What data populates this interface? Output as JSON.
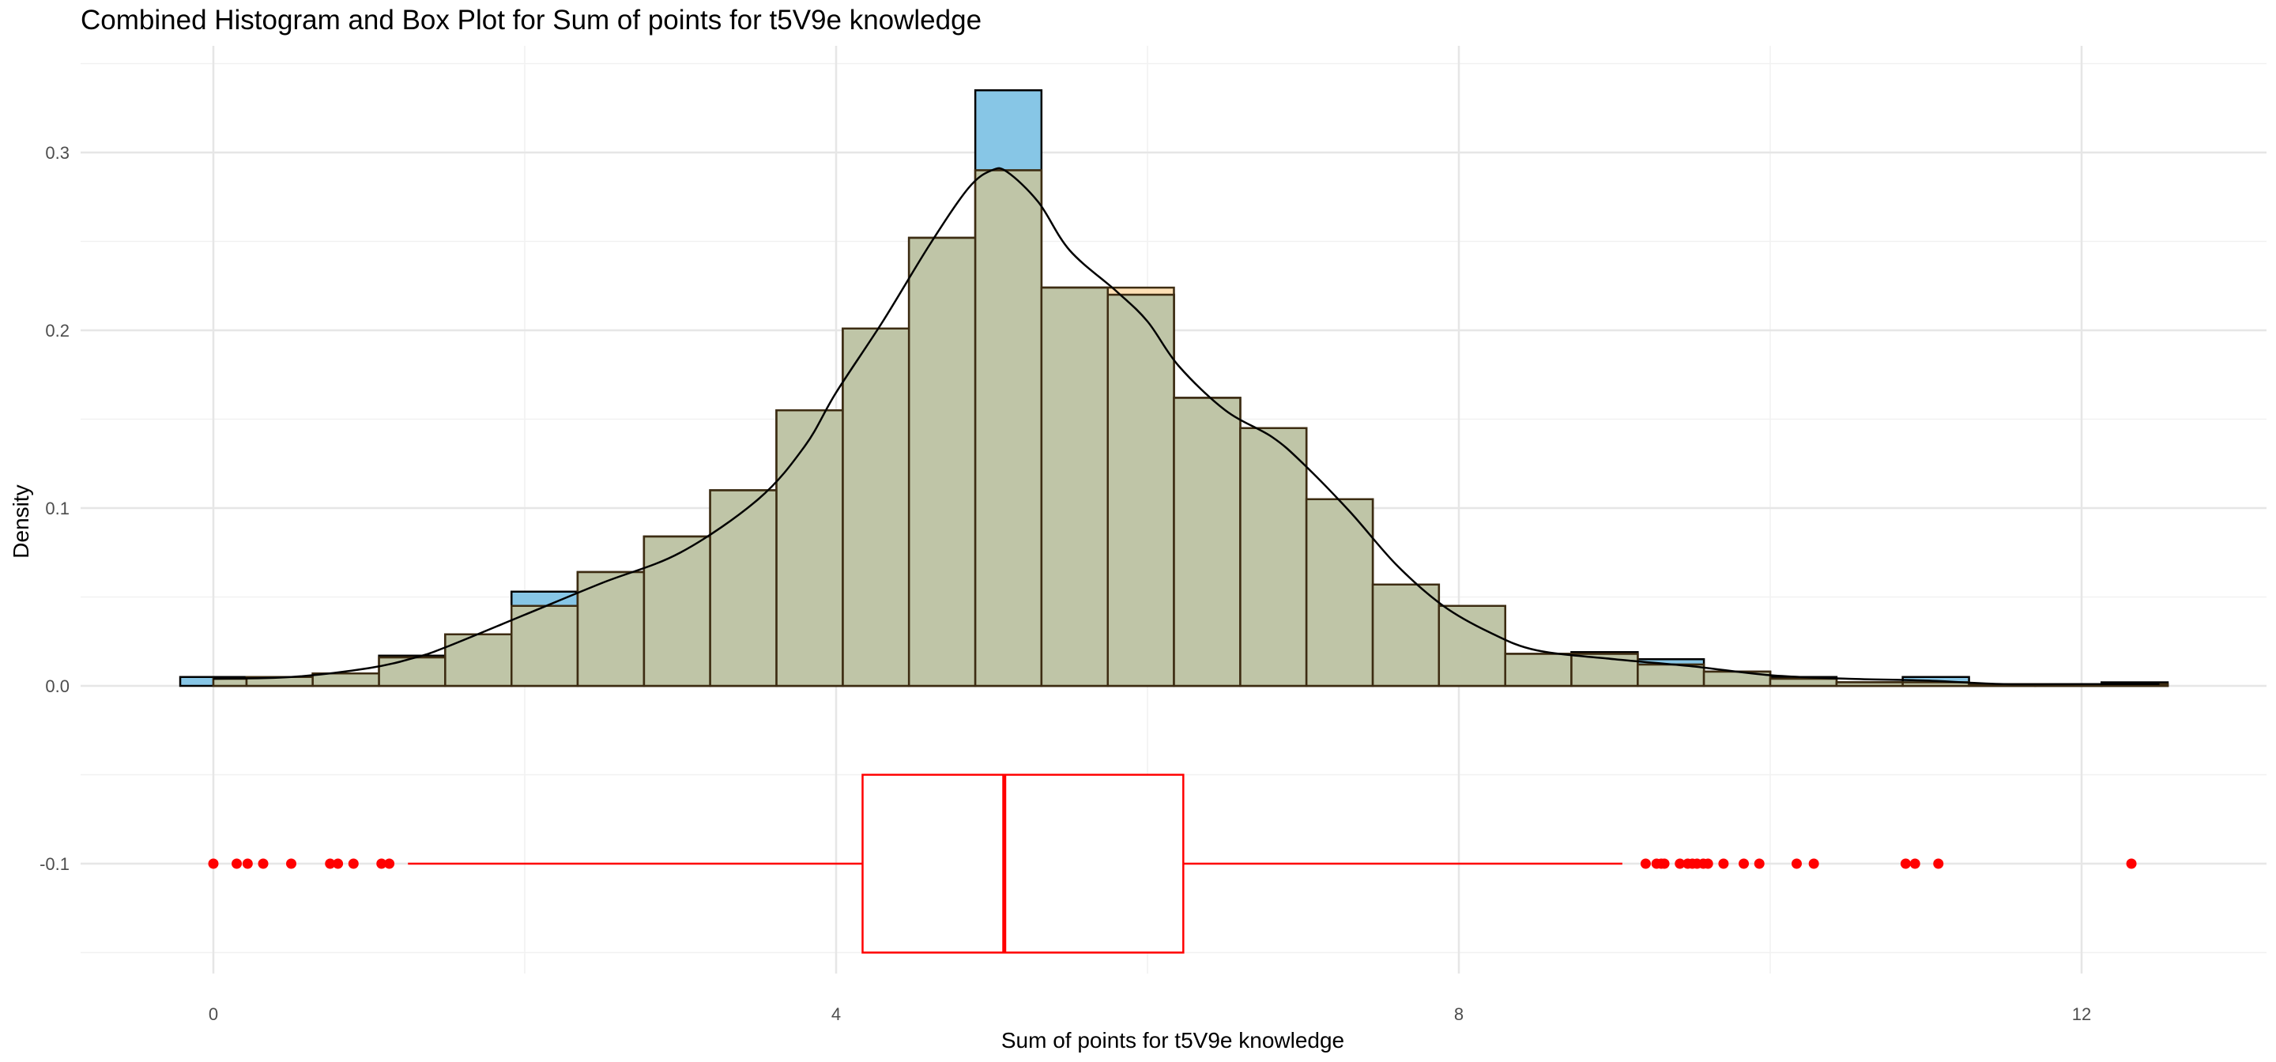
{
  "chart_data": {
    "title": "Combined Histogram and Box Plot for Sum of points for t5V9e knowledge",
    "xlabel": "Sum of points for t5V9e knowledge",
    "ylabel": "Density",
    "xlim": [
      -1.0,
      13.5
    ],
    "ylim": [
      -0.17,
      0.35
    ],
    "x_ticks": [
      0,
      4,
      8,
      12
    ],
    "y_ticks": [
      -0.1,
      0.0,
      0.1,
      0.2,
      0.3
    ],
    "y_tick_labels": [
      "-0.1",
      "0.0",
      "0.1",
      "0.2",
      "0.3"
    ],
    "grid": true,
    "legend": "none",
    "layers": [
      {
        "type": "histogram",
        "role": "observed",
        "fill": "#87C6E6",
        "bin_width": 0.4255,
        "bins": [
          {
            "x0": -0.213,
            "x1": 0.213,
            "density": 0.005
          },
          {
            "x0": 0.213,
            "x1": 0.638,
            "density": 0.005
          },
          {
            "x0": 0.638,
            "x1": 1.064,
            "density": 0.007
          },
          {
            "x0": 1.064,
            "x1": 1.489,
            "density": 0.017
          },
          {
            "x0": 1.489,
            "x1": 1.915,
            "density": 0.029
          },
          {
            "x0": 1.915,
            "x1": 2.34,
            "density": 0.053
          },
          {
            "x0": 2.34,
            "x1": 2.766,
            "density": 0.064
          },
          {
            "x0": 2.766,
            "x1": 3.191,
            "density": 0.084
          },
          {
            "x0": 3.191,
            "x1": 3.617,
            "density": 0.11
          },
          {
            "x0": 3.617,
            "x1": 4.043,
            "density": 0.155
          },
          {
            "x0": 4.043,
            "x1": 4.468,
            "density": 0.201
          },
          {
            "x0": 4.468,
            "x1": 4.894,
            "density": 0.252
          },
          {
            "x0": 4.894,
            "x1": 5.319,
            "density": 0.335
          },
          {
            "x0": 5.319,
            "x1": 5.745,
            "density": 0.224
          },
          {
            "x0": 5.745,
            "x1": 6.17,
            "density": 0.22
          },
          {
            "x0": 6.17,
            "x1": 6.596,
            "density": 0.162
          },
          {
            "x0": 6.596,
            "x1": 7.021,
            "density": 0.145
          },
          {
            "x0": 7.021,
            "x1": 7.447,
            "density": 0.105
          },
          {
            "x0": 7.447,
            "x1": 7.872,
            "density": 0.057
          },
          {
            "x0": 7.872,
            "x1": 8.298,
            "density": 0.045
          },
          {
            "x0": 8.298,
            "x1": 8.723,
            "density": 0.018
          },
          {
            "x0": 8.723,
            "x1": 9.149,
            "density": 0.019
          },
          {
            "x0": 9.149,
            "x1": 9.574,
            "density": 0.015
          },
          {
            "x0": 9.574,
            "x1": 10.0,
            "density": 0.008
          },
          {
            "x0": 10.0,
            "x1": 10.426,
            "density": 0.005
          },
          {
            "x0": 10.426,
            "x1": 10.851,
            "density": 0.002
          },
          {
            "x0": 10.851,
            "x1": 11.277,
            "density": 0.005
          },
          {
            "x0": 11.277,
            "x1": 11.702,
            "density": 0.001
          },
          {
            "x0": 11.702,
            "x1": 12.128,
            "density": 0.001
          },
          {
            "x0": 12.128,
            "x1": 12.553,
            "density": 0.002
          }
        ]
      },
      {
        "type": "histogram",
        "role": "fitted",
        "fill": "#FDD9A5",
        "bins": [
          {
            "x0": 0.0,
            "x1": 0.213,
            "density": 0.004
          },
          {
            "x0": 0.213,
            "x1": 0.638,
            "density": 0.005
          },
          {
            "x0": 0.638,
            "x1": 1.064,
            "density": 0.007
          },
          {
            "x0": 1.064,
            "x1": 1.489,
            "density": 0.016
          },
          {
            "x0": 1.489,
            "x1": 1.915,
            "density": 0.029
          },
          {
            "x0": 1.915,
            "x1": 2.34,
            "density": 0.045
          },
          {
            "x0": 2.34,
            "x1": 2.766,
            "density": 0.064
          },
          {
            "x0": 2.766,
            "x1": 3.191,
            "density": 0.084
          },
          {
            "x0": 3.191,
            "x1": 3.617,
            "density": 0.11
          },
          {
            "x0": 3.617,
            "x1": 4.043,
            "density": 0.155
          },
          {
            "x0": 4.043,
            "x1": 4.468,
            "density": 0.201
          },
          {
            "x0": 4.468,
            "x1": 4.894,
            "density": 0.252
          },
          {
            "x0": 4.894,
            "x1": 5.319,
            "density": 0.29
          },
          {
            "x0": 5.319,
            "x1": 5.745,
            "density": 0.224
          },
          {
            "x0": 5.745,
            "x1": 6.17,
            "density": 0.224
          },
          {
            "x0": 6.17,
            "x1": 6.596,
            "density": 0.162
          },
          {
            "x0": 6.596,
            "x1": 7.021,
            "density": 0.145
          },
          {
            "x0": 7.021,
            "x1": 7.447,
            "density": 0.105
          },
          {
            "x0": 7.447,
            "x1": 7.872,
            "density": 0.057
          },
          {
            "x0": 7.872,
            "x1": 8.298,
            "density": 0.045
          },
          {
            "x0": 8.298,
            "x1": 8.723,
            "density": 0.018
          },
          {
            "x0": 8.723,
            "x1": 9.149,
            "density": 0.018
          },
          {
            "x0": 9.149,
            "x1": 9.574,
            "density": 0.012
          },
          {
            "x0": 9.574,
            "x1": 10.0,
            "density": 0.008
          },
          {
            "x0": 10.0,
            "x1": 10.426,
            "density": 0.004
          },
          {
            "x0": 10.426,
            "x1": 10.851,
            "density": 0.002
          },
          {
            "x0": 10.851,
            "x1": 11.277,
            "density": 0.002
          },
          {
            "x0": 11.277,
            "x1": 11.702,
            "density": 0.001
          },
          {
            "x0": 11.702,
            "x1": 12.128,
            "density": 0.001
          },
          {
            "x0": 12.128,
            "x1": 12.553,
            "density": 0.001
          }
        ]
      },
      {
        "type": "line",
        "role": "density-curve",
        "color": "#000000",
        "points": [
          [
            0.0,
            0.004
          ],
          [
            0.5,
            0.005
          ],
          [
            1.0,
            0.01
          ],
          [
            1.3,
            0.016
          ],
          [
            1.5,
            0.022
          ],
          [
            2.0,
            0.04
          ],
          [
            2.5,
            0.058
          ],
          [
            3.0,
            0.075
          ],
          [
            3.5,
            0.105
          ],
          [
            3.8,
            0.135
          ],
          [
            4.0,
            0.165
          ],
          [
            4.3,
            0.205
          ],
          [
            4.6,
            0.248
          ],
          [
            4.85,
            0.28
          ],
          [
            5.0,
            0.29
          ],
          [
            5.1,
            0.289
          ],
          [
            5.3,
            0.272
          ],
          [
            5.5,
            0.245
          ],
          [
            5.8,
            0.222
          ],
          [
            6.0,
            0.205
          ],
          [
            6.2,
            0.18
          ],
          [
            6.5,
            0.155
          ],
          [
            6.8,
            0.14
          ],
          [
            7.0,
            0.125
          ],
          [
            7.3,
            0.098
          ],
          [
            7.6,
            0.068
          ],
          [
            7.9,
            0.045
          ],
          [
            8.2,
            0.03
          ],
          [
            8.5,
            0.02
          ],
          [
            9.0,
            0.015
          ],
          [
            9.5,
            0.011
          ],
          [
            10.0,
            0.006
          ],
          [
            10.5,
            0.004
          ],
          [
            11.0,
            0.003
          ],
          [
            11.5,
            0.001
          ],
          [
            12.0,
            0.001
          ],
          [
            12.5,
            0.001
          ]
        ]
      },
      {
        "type": "boxplot",
        "color": "#FF0000",
        "y_center": -0.1,
        "y_low": -0.15,
        "y_high": -0.05,
        "whisker_low": 1.25,
        "q1": 4.17,
        "median": 5.08,
        "q3": 6.23,
        "whisker_high": 9.05,
        "outliers": [
          0.0,
          0.15,
          0.22,
          0.32,
          0.5,
          0.75,
          0.8,
          0.9,
          1.08,
          1.13,
          9.2,
          9.27,
          9.3,
          9.32,
          9.42,
          9.47,
          9.5,
          9.53,
          9.57,
          9.6,
          9.7,
          9.83,
          9.93,
          10.17,
          10.28,
          10.87,
          10.93,
          11.08,
          12.32
        ]
      }
    ]
  }
}
